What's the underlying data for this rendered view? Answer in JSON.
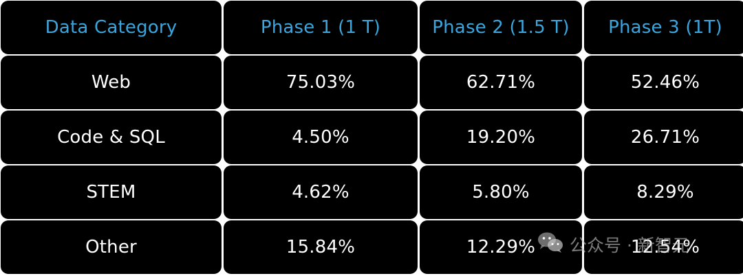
{
  "chart_data": {
    "type": "table",
    "columns": [
      "Data Category",
      "Phase 1 (1 T)",
      "Phase 2 (1.5 T)",
      "Phase 3 (1T)"
    ],
    "rows": [
      [
        "Web",
        "75.03%",
        "62.71%",
        "52.46%"
      ],
      [
        "Code & SQL",
        "4.50%",
        "19.20%",
        "26.71%"
      ],
      [
        "STEM",
        "4.62%",
        "5.80%",
        "8.29%"
      ],
      [
        "Other",
        "15.84%",
        "12.29%",
        "12.54%"
      ]
    ]
  },
  "colors": {
    "cell_background": "#000000",
    "header_text": "#3aa6dd",
    "body_text": "#ffffff",
    "grid_lines": "#ffffff"
  },
  "watermark": {
    "label": "公众号 · 新智元",
    "icon": "wechat-icon"
  }
}
